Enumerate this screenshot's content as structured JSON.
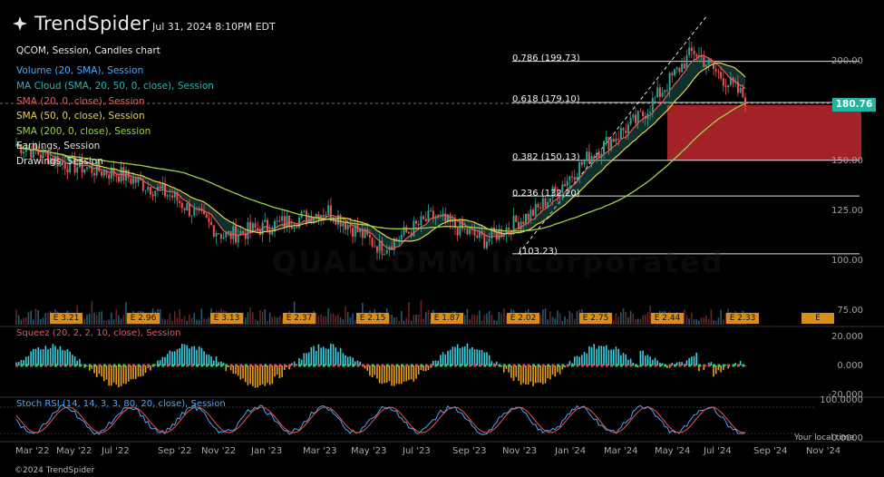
{
  "brand": {
    "name": "TrendSpider",
    "copyright": "©2024 TrendSpider"
  },
  "header": {
    "datetime": "Jul 31, 2024 8:10PM EDT"
  },
  "legend": [
    "QCOM, Session, Candles chart",
    "Volume (20, SMA), Session",
    "MA Cloud (SMA, 20, 50, 0, close), Session",
    "SMA (20, 0, close), Session",
    "SMA (50, 0, close), Session",
    "SMA (200, 0, close), Session",
    "Earnings, Session",
    "Drawings, Session"
  ],
  "fib_levels": [
    {
      "label": "0.786 (199.73)",
      "price": 199.73
    },
    {
      "label": "0.618 (179.10)",
      "price": 179.1
    },
    {
      "label": "0.382 (150.13)",
      "price": 150.13
    },
    {
      "label": "0.236 (132.20)",
      "price": 132.2
    },
    {
      "label": "(103.23)",
      "price": 103.23
    }
  ],
  "price_axis": [
    "200.00",
    "150.00",
    "125.00",
    "100.00",
    "75.00"
  ],
  "last_price": "180.76",
  "earnings": [
    "E 3.21",
    "E 2.96",
    "E 3.13",
    "E 2.37",
    "E 2.15",
    "E 1.87",
    "E 2.02",
    "E 2.75",
    "E 2.44",
    "E 2.33",
    "E"
  ],
  "squeeze": {
    "label": "Squeez (20, 2, 2, 10, close), Session",
    "axis": [
      "20.000",
      "0.000",
      "-20.000"
    ]
  },
  "stochrsi": {
    "label": "Stoch RSI (14, 14, 3, 3, 80, 20, close), Session",
    "axis": [
      "100.0000",
      "0.0000"
    ]
  },
  "local_time": "Your local time",
  "x_axis": [
    "Mar '22",
    "May '22",
    "Jul '22",
    "Sep '22",
    "Nov '22",
    "Jan '23",
    "Mar '23",
    "May '23",
    "Jul '23",
    "Sep '23",
    "Nov '23",
    "Jan '24",
    "Mar '24",
    "May '24",
    "Jul '24",
    "Sep '24",
    "Nov '24"
  ],
  "watermark": "QUALCOMM Incorporated",
  "colors": {
    "up": "#26a69a",
    "down": "#ef5350",
    "sma20": "#e35a5a",
    "sma50": "#e8d24a",
    "sma200": "#9bd34a",
    "zone": "#c0282e",
    "accent": "#1fb5a0"
  },
  "chart_data": {
    "type": "line",
    "title": "QCOM, Session, Candles chart",
    "x": [
      "Mar '22",
      "May '22",
      "Jul '22",
      "Sep '22",
      "Nov '22",
      "Jan '23",
      "Mar '23",
      "May '23",
      "Jul '23",
      "Sep '23",
      "Nov '23",
      "Jan '24",
      "Mar '24",
      "May '24",
      "Jul '24"
    ],
    "series": [
      {
        "values": [
          158,
          148,
          143,
          132,
          112,
          118,
          125,
          106,
          122,
          110,
          125,
          152,
          172,
          205,
          181
        ]
      }
    ],
    "ylim": [
      75,
      225
    ]
  }
}
